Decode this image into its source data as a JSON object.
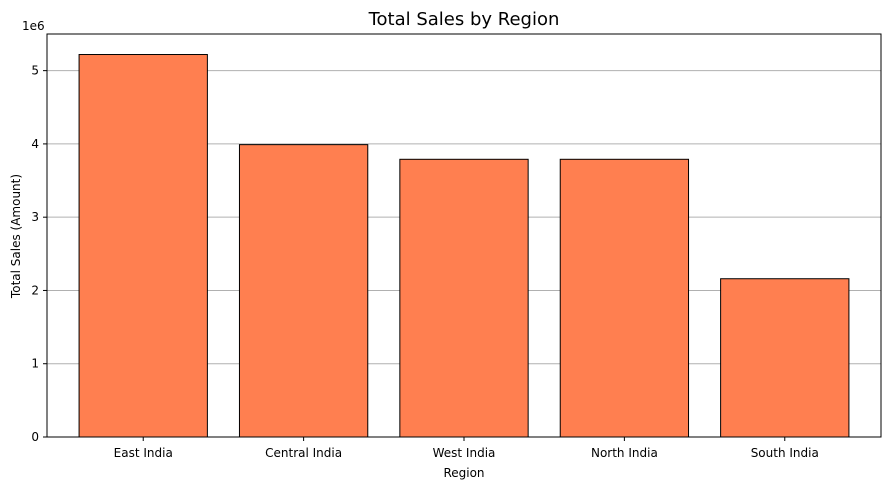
{
  "chart_data": {
    "type": "bar",
    "title": "Total Sales by Region",
    "xlabel": "Region",
    "ylabel": "Total Sales (Amount)",
    "y_offset_label": "1e6",
    "categories": [
      "East India",
      "Central India",
      "West India",
      "North India",
      "South India"
    ],
    "values": [
      5220000,
      3990000,
      3790000,
      3790000,
      2160000
    ],
    "ylim": [
      0,
      5500000
    ],
    "yticks": [
      0,
      1000000,
      2000000,
      3000000,
      4000000,
      5000000
    ],
    "ytick_labels": [
      "0",
      "1",
      "2",
      "3",
      "4",
      "5"
    ],
    "grid": "y-axis only",
    "legend": "none",
    "colors": {
      "bar_fill": "#ff7f50",
      "bar_edge": "#000000",
      "grid": "#b0b0b0"
    }
  }
}
